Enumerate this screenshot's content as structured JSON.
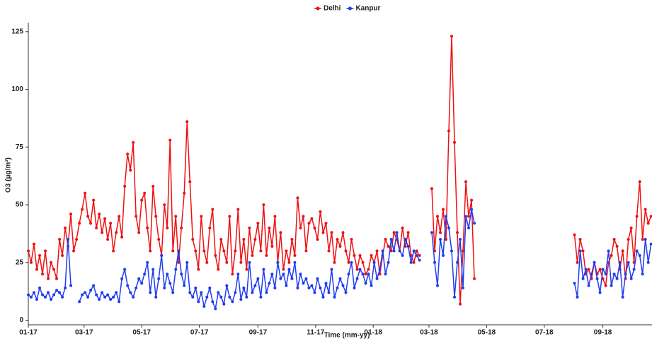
{
  "chart_data": {
    "type": "line",
    "xlabel": "Time (mm-yy)",
    "ylabel": "O3 (μg/m³)",
    "legend": "top",
    "xlim": [
      0,
      660
    ],
    "xticks": [
      {
        "value": 0,
        "label": "01-17"
      },
      {
        "value": 59,
        "label": "03-17"
      },
      {
        "value": 120,
        "label": "05-17"
      },
      {
        "value": 181,
        "label": "07-17"
      },
      {
        "value": 243,
        "label": "09-17"
      },
      {
        "value": 304,
        "label": "11-17"
      },
      {
        "value": 365,
        "label": "01-18"
      },
      {
        "value": 424,
        "label": "03-18"
      },
      {
        "value": 485,
        "label": "05-18"
      },
      {
        "value": 546,
        "label": "07-18"
      },
      {
        "value": 608,
        "label": "09-18"
      }
    ],
    "ylim": [
      -2,
      128
    ],
    "yticks": [
      0,
      25,
      50,
      75,
      100,
      125
    ],
    "x": [
      0,
      3,
      6,
      9,
      12,
      15,
      18,
      21,
      24,
      27,
      30,
      33,
      36,
      39,
      42,
      45,
      48,
      51,
      54,
      57,
      60,
      63,
      66,
      69,
      72,
      75,
      78,
      81,
      84,
      87,
      90,
      93,
      96,
      99,
      102,
      105,
      108,
      111,
      114,
      117,
      120,
      123,
      126,
      129,
      132,
      135,
      138,
      141,
      144,
      147,
      150,
      153,
      156,
      159,
      162,
      165,
      168,
      171,
      174,
      177,
      180,
      183,
      186,
      189,
      192,
      195,
      198,
      201,
      204,
      207,
      210,
      213,
      216,
      219,
      222,
      225,
      228,
      231,
      234,
      237,
      240,
      243,
      246,
      249,
      252,
      255,
      258,
      261,
      264,
      267,
      270,
      273,
      276,
      279,
      282,
      285,
      288,
      291,
      294,
      297,
      300,
      303,
      306,
      309,
      312,
      315,
      318,
      321,
      324,
      327,
      330,
      333,
      336,
      339,
      342,
      345,
      348,
      351,
      354,
      357,
      360,
      363,
      366,
      369,
      372,
      375,
      378,
      381,
      384,
      387,
      390,
      393,
      396,
      399,
      402,
      405,
      408,
      411,
      414,
      420,
      427,
      430,
      433,
      436,
      439,
      442,
      445,
      448,
      451,
      454,
      457,
      460,
      463,
      466,
      469,
      472,
      525,
      578,
      581,
      584,
      587,
      590,
      593,
      596,
      599,
      602,
      605,
      608,
      611,
      614,
      617,
      620,
      623,
      626,
      629,
      632,
      635,
      638,
      641,
      644,
      647,
      650,
      653,
      656,
      659
    ],
    "series": [
      {
        "name": "Delhi",
        "color": "#ee1111",
        "values": [
          30,
          25,
          33,
          22,
          28,
          20,
          30,
          18,
          25,
          22,
          18,
          35,
          28,
          40,
          32,
          46,
          30,
          35,
          42,
          48,
          55,
          45,
          42,
          52,
          40,
          46,
          38,
          44,
          35,
          42,
          30,
          38,
          45,
          36,
          58,
          72,
          65,
          77,
          45,
          38,
          52,
          55,
          40,
          30,
          58,
          45,
          35,
          28,
          50,
          40,
          78,
          30,
          45,
          25,
          40,
          55,
          86,
          60,
          35,
          30,
          22,
          45,
          30,
          25,
          40,
          48,
          28,
          22,
          35,
          30,
          25,
          45,
          20,
          30,
          48,
          25,
          35,
          22,
          40,
          28,
          35,
          42,
          30,
          50,
          28,
          40,
          32,
          45,
          25,
          38,
          22,
          30,
          25,
          35,
          28,
          53,
          40,
          45,
          30,
          42,
          44,
          40,
          35,
          47,
          38,
          42,
          30,
          38,
          25,
          35,
          32,
          38,
          30,
          25,
          35,
          28,
          22,
          28,
          25,
          20,
          22,
          28,
          25,
          30,
          20,
          28,
          35,
          32,
          30,
          38,
          35,
          30,
          40,
          32,
          38,
          28,
          25,
          30,
          28,
          null,
          57,
          30,
          45,
          38,
          48,
          35,
          82,
          123,
          77,
          38,
          7,
          30,
          60,
          45,
          52,
          18,
          null,
          37,
          25,
          35,
          30,
          20,
          22,
          18,
          25,
          20,
          22,
          18,
          15,
          25,
          28,
          35,
          32,
          22,
          30,
          18,
          35,
          40,
          25,
          45,
          60,
          35,
          48,
          42,
          45
        ]
      },
      {
        "name": "Kanpur",
        "color": "#1f3cf0",
        "values": [
          11,
          10,
          12,
          9,
          14,
          11,
          10,
          12,
          9,
          11,
          13,
          12,
          10,
          14,
          35,
          15,
          null,
          null,
          8,
          11,
          12,
          10,
          13,
          15,
          11,
          9,
          12,
          10,
          11,
          9,
          10,
          12,
          8,
          18,
          22,
          15,
          12,
          10,
          14,
          18,
          16,
          20,
          25,
          12,
          22,
          10,
          18,
          28,
          14,
          20,
          16,
          12,
          22,
          30,
          20,
          15,
          25,
          12,
          10,
          14,
          8,
          12,
          6,
          10,
          14,
          8,
          5,
          12,
          10,
          7,
          15,
          10,
          8,
          12,
          20,
          9,
          14,
          10,
          25,
          12,
          15,
          18,
          10,
          22,
          12,
          16,
          20,
          14,
          25,
          18,
          20,
          15,
          22,
          18,
          25,
          14,
          20,
          16,
          18,
          14,
          15,
          12,
          18,
          14,
          10,
          16,
          12,
          22,
          10,
          14,
          18,
          15,
          12,
          20,
          25,
          14,
          18,
          22,
          20,
          16,
          20,
          15,
          25,
          18,
          22,
          30,
          20,
          25,
          35,
          30,
          38,
          30,
          28,
          35,
          32,
          25,
          30,
          28,
          26,
          null,
          38,
          25,
          15,
          35,
          28,
          45,
          40,
          30,
          10,
          25,
          35,
          14,
          45,
          40,
          48,
          42,
          null,
          16,
          10,
          30,
          18,
          22,
          15,
          20,
          25,
          18,
          12,
          22,
          20,
          30,
          15,
          20,
          18,
          25,
          10,
          20,
          25,
          18,
          22,
          30,
          28,
          20,
          35,
          25,
          33
        ]
      }
    ]
  }
}
